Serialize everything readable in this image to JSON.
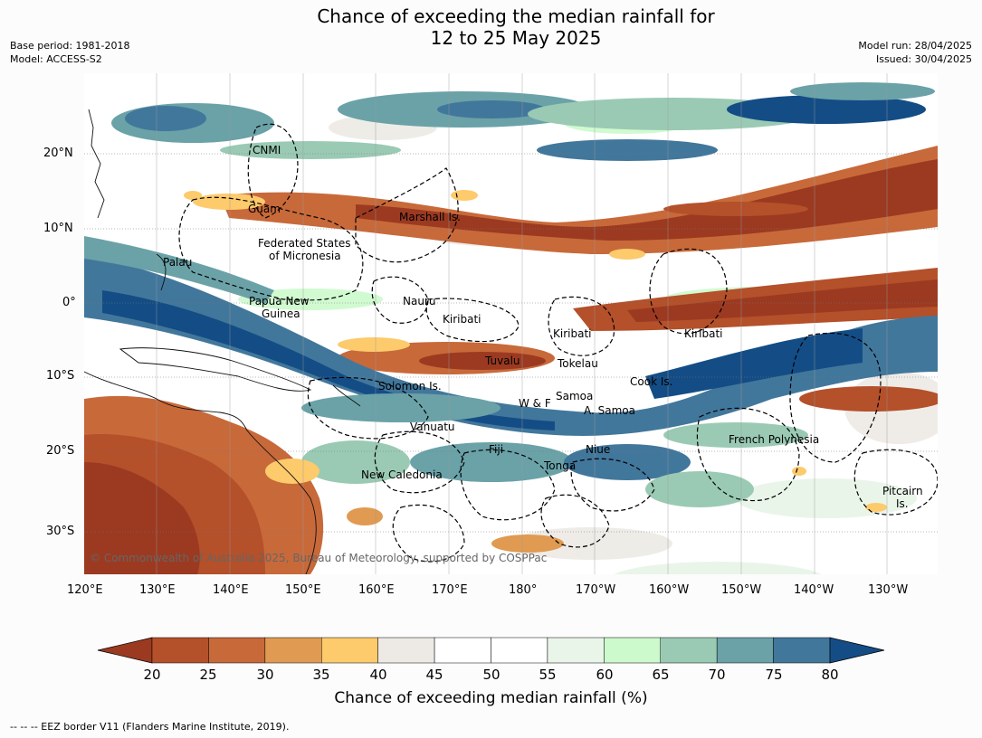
{
  "title_line1": "Chance of exceeding the median rainfall for",
  "title_line2": "12 to 25 May 2025",
  "base_period": "Base period: 1981-2018",
  "model": "Model: ACCESS-S2",
  "model_run": "Model run: 28/04/2025",
  "issued": "Issued: 30/04/2025",
  "copyright": "© Commonwealth of Australia 2025, Bureau of Meteorology, supported by COSPPac",
  "map": {
    "lat_labels": [
      "20°N",
      "10°N",
      "0°",
      "10°S",
      "20°S",
      "30°S"
    ],
    "lon_labels": [
      "120°E",
      "130°E",
      "140°E",
      "150°E",
      "160°E",
      "170°E",
      "180°",
      "170°W",
      "160°W",
      "150°W",
      "140°W",
      "130°W"
    ],
    "places": [
      {
        "name": "CNMI"
      },
      {
        "name": "Guam"
      },
      {
        "name": "Marshall Is."
      },
      {
        "name": "Federated States"
      },
      {
        "name": "of Micronesia"
      },
      {
        "name": "Palau"
      },
      {
        "name": "Papua New"
      },
      {
        "name": "Guinea"
      },
      {
        "name": "Nauru"
      },
      {
        "name": "Kiribati"
      },
      {
        "name": "Kiribati"
      },
      {
        "name": "Kiribati"
      },
      {
        "name": "Tuvalu"
      },
      {
        "name": "Tokelau"
      },
      {
        "name": "Solomon Is."
      },
      {
        "name": "Cook Is."
      },
      {
        "name": "Samoa"
      },
      {
        "name": "W & F"
      },
      {
        "name": "A. Samoa"
      },
      {
        "name": "Vanuatu"
      },
      {
        "name": "Fiji"
      },
      {
        "name": "Niue"
      },
      {
        "name": "French Polynesia"
      },
      {
        "name": "Tonga"
      },
      {
        "name": "New Caledonia"
      },
      {
        "name": "Pitcairn"
      },
      {
        "name": "Is."
      }
    ]
  },
  "colorbar": {
    "colors": [
      "#9b3a21",
      "#b4502a",
      "#c8693a",
      "#e09a52",
      "#fdca6c",
      "#edeae5",
      "#ffffff",
      "#ffffff",
      "#e8f5e8",
      "#ccfacc",
      "#9acab4",
      "#6aa2a8",
      "#42779c",
      "#144d85"
    ],
    "ticks": [
      "20",
      "25",
      "30",
      "35",
      "40",
      "45",
      "50",
      "55",
      "60",
      "65",
      "70",
      "75",
      "80"
    ],
    "label": "Chance of exceeding median rainfall (%)"
  },
  "footnote": "--  --  -- EEZ border V11 (Flanders Marine Institute, 2019)."
}
